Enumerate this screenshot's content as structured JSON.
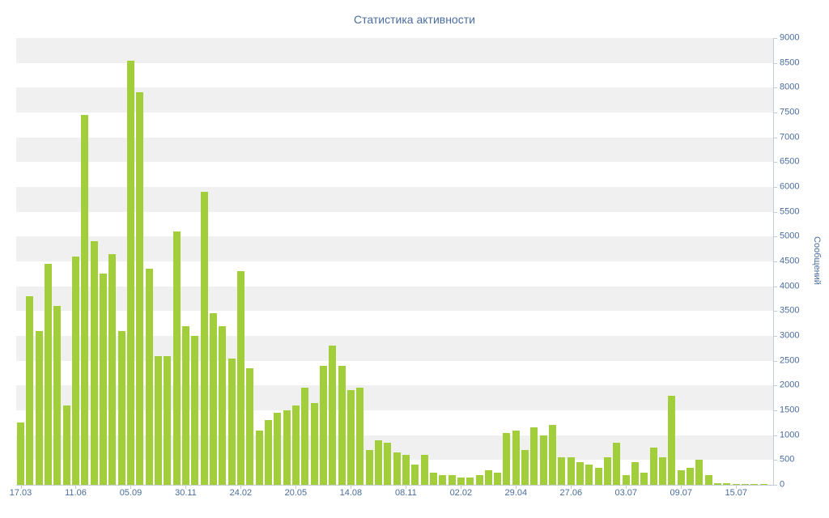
{
  "chart_data": {
    "type": "bar",
    "title": "Статистика активности",
    "ylabel": "Сообщений",
    "xlabel": "",
    "ylim": [
      0,
      9000
    ],
    "y_tick_step": 500,
    "legend": "none",
    "grid": "striped-bands",
    "bar_color": "#a3ce3c",
    "title_color": "#4a6d9e",
    "axis_label_color": "#4a6d9e",
    "axis_line_color": "#c3cbd3",
    "stripe_colors": [
      "#f0f0f0",
      "#ffffff"
    ],
    "x_tick_labels": [
      "17.03",
      "11.06",
      "05.09",
      "30.11",
      "24.02",
      "20.05",
      "14.08",
      "08.11",
      "02.02",
      "29.04",
      "27.06",
      "03.07",
      "09.07",
      "15.07"
    ],
    "x_tick_every": 6,
    "values": [
      1250,
      3800,
      3100,
      4450,
      3600,
      1600,
      4600,
      7450,
      4900,
      4250,
      4650,
      3100,
      8550,
      7900,
      4350,
      2600,
      2600,
      5100,
      3200,
      3000,
      5900,
      3450,
      3200,
      2550,
      4300,
      2350,
      1100,
      1300,
      1450,
      1500,
      1600,
      1950,
      1650,
      2400,
      2800,
      2400,
      1900,
      1950,
      700,
      900,
      850,
      650,
      600,
      400,
      600,
      250,
      200,
      200,
      150,
      150,
      200,
      300,
      250,
      1050,
      1100,
      700,
      1150,
      1000,
      1200,
      550,
      550,
      450,
      400,
      350,
      550,
      850,
      200,
      450,
      250,
      750,
      550,
      1800,
      300,
      350,
      500,
      200,
      30,
      25,
      20,
      15,
      10,
      10
    ]
  }
}
